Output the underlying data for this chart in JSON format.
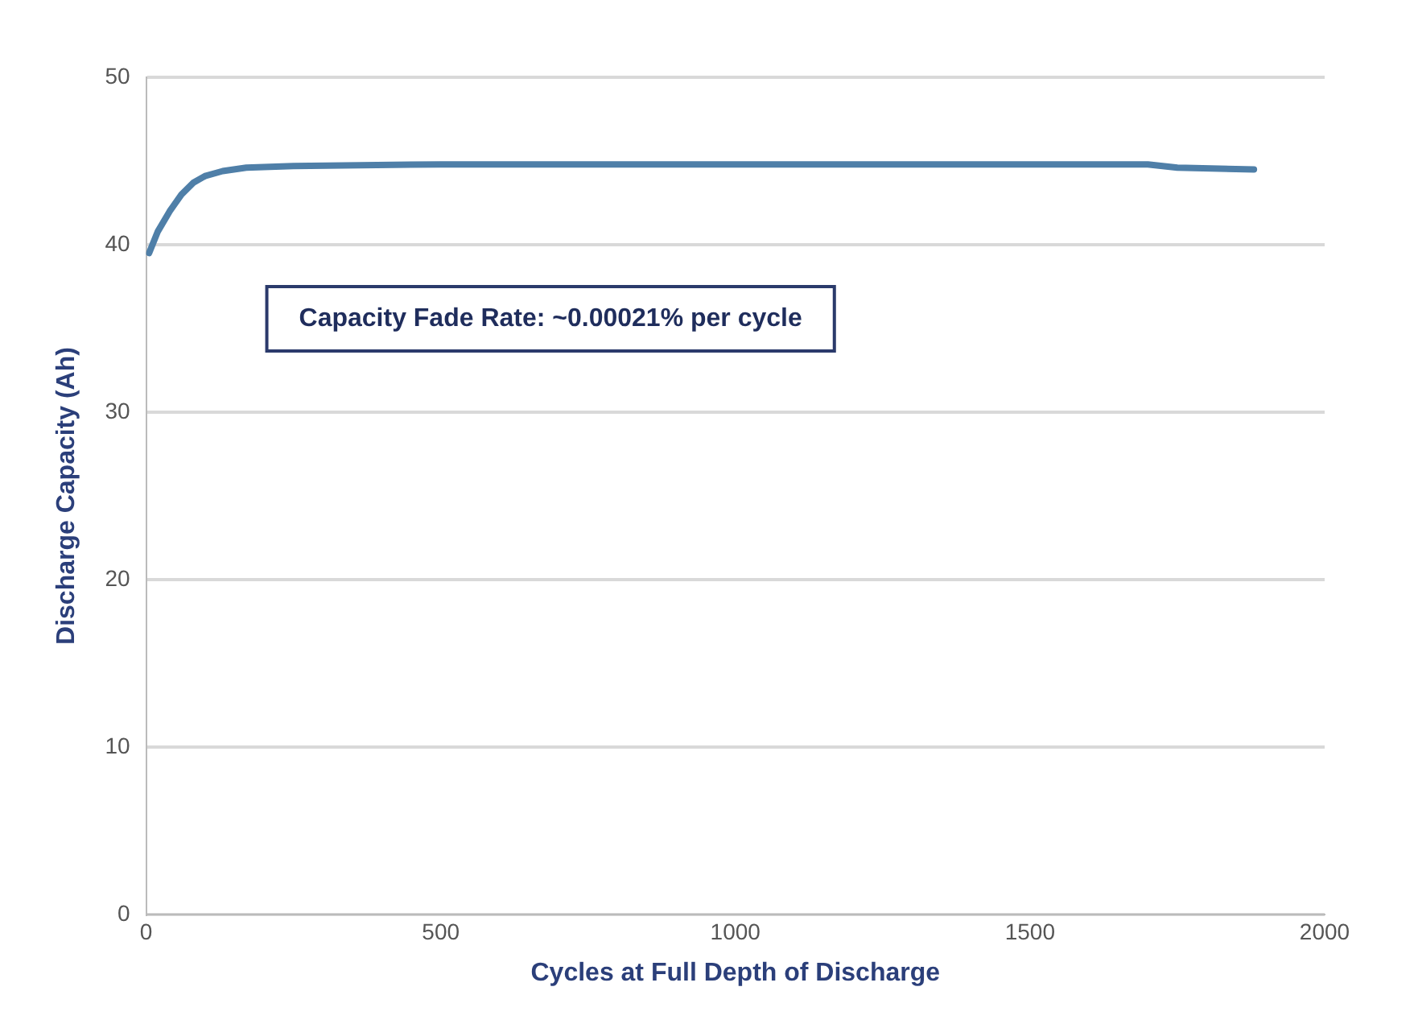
{
  "chart_data": {
    "type": "line",
    "xlabel": "Cycles at Full Depth of Discharge",
    "ylabel": "Discharge Capacity (Ah)",
    "annotations": [
      "Capacity Fade Rate: ~0.00021% per cycle"
    ],
    "series": [
      {
        "color": "#4f7fa8",
        "x": [
          5,
          20,
          40,
          60,
          80,
          100,
          130,
          170,
          250,
          500,
          1000,
          1500,
          1700,
          1750,
          1880
        ],
        "values": [
          39.5,
          40.8,
          42,
          43,
          43.7,
          44.1,
          44.4,
          44.6,
          44.7,
          44.8,
          44.8,
          44.8,
          44.8,
          44.6,
          44.5
        ]
      }
    ],
    "xlim": [
      0,
      2000
    ],
    "xticks": [
      0,
      500,
      1000,
      1500,
      2000
    ],
    "ylim": [
      0,
      50
    ],
    "yticks": [
      0,
      10,
      20,
      30,
      40,
      50
    ],
    "grid": "y",
    "legend": false,
    "marker": "none",
    "line_style": "solid"
  }
}
